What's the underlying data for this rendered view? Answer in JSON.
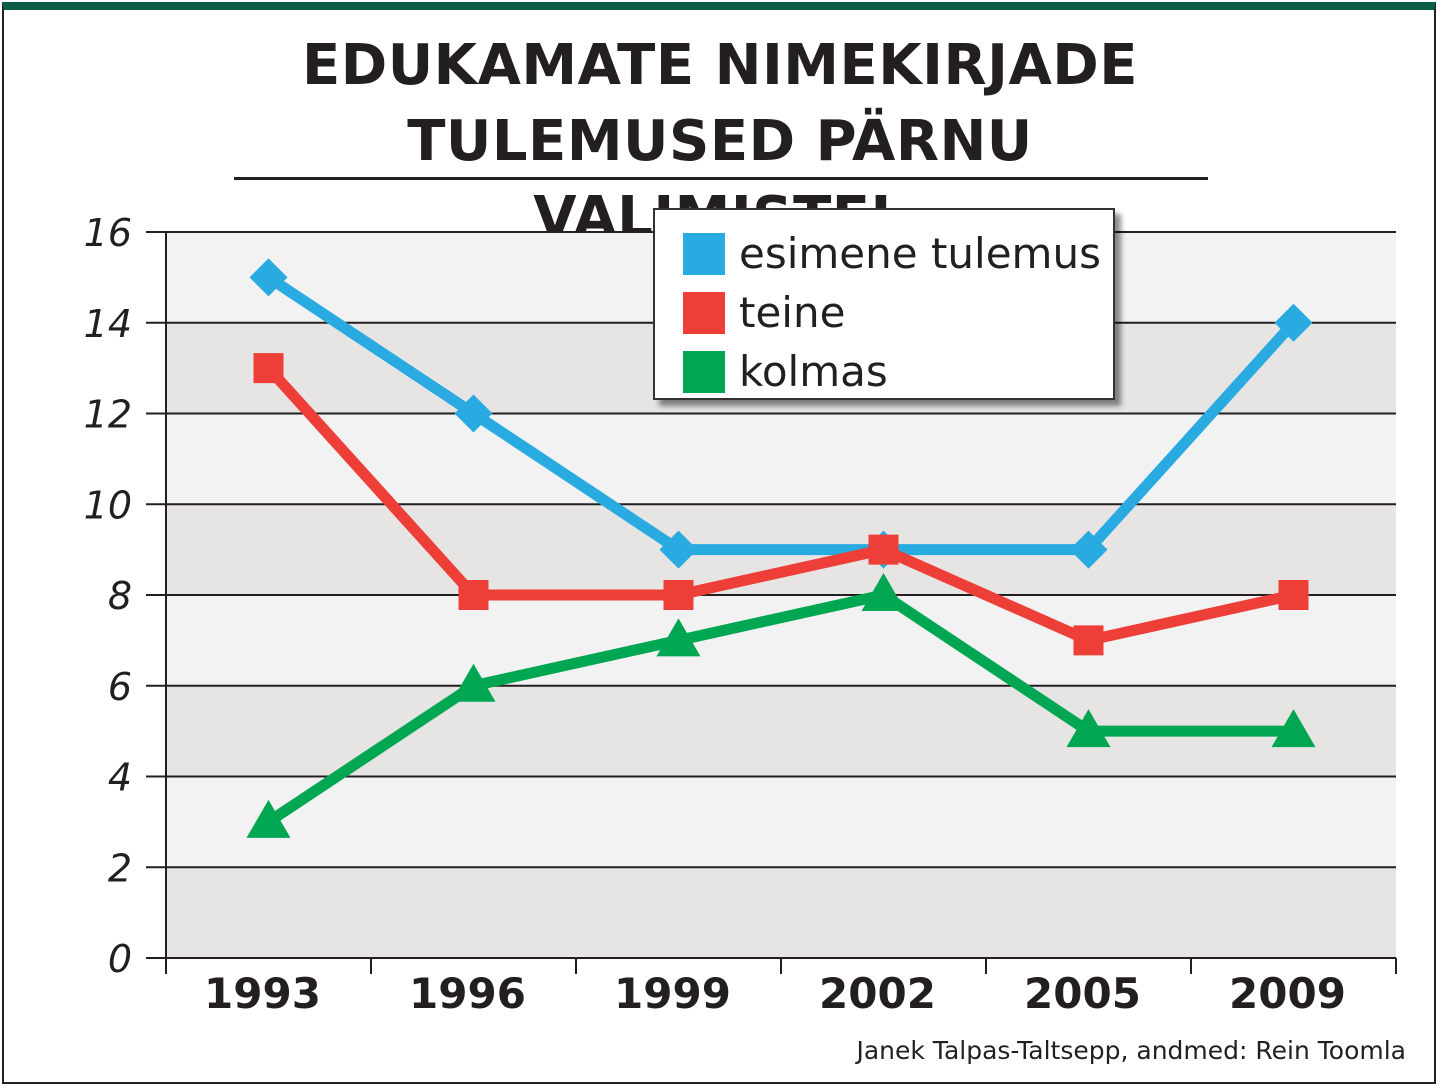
{
  "chart_data": {
    "type": "line",
    "title": "EDUKAMATE NIMEKIRJADE TULEMUSED PÄRNU VALIMISTEL",
    "title_lines": [
      "EDUKAMATE NIMEKIRJADE",
      "TULEMUSED PÄRNU VALIMISTEL"
    ],
    "categories": [
      "1993",
      "1996",
      "1999",
      "2002",
      "2005",
      "2009"
    ],
    "ylim": [
      0,
      16
    ],
    "yticks": [
      "0",
      "2",
      "4",
      "6",
      "8",
      "10",
      "12",
      "14",
      "16"
    ],
    "grid": true,
    "legend_position": "top-center",
    "series": [
      {
        "name": "esimene tulemus",
        "color": "#29abe2",
        "marker": "diamond",
        "values": [
          15,
          12,
          9,
          9,
          9,
          14
        ]
      },
      {
        "name": "teine",
        "color": "#ee3e38",
        "marker": "square",
        "values": [
          13,
          8,
          8,
          9,
          7,
          8
        ]
      },
      {
        "name": "kolmas",
        "color": "#00a651",
        "marker": "triangle",
        "values": [
          3,
          6,
          7,
          8,
          5,
          5
        ]
      }
    ],
    "source": "Janek Talpas-Taltsepp, andmed: Rein Toomla"
  }
}
